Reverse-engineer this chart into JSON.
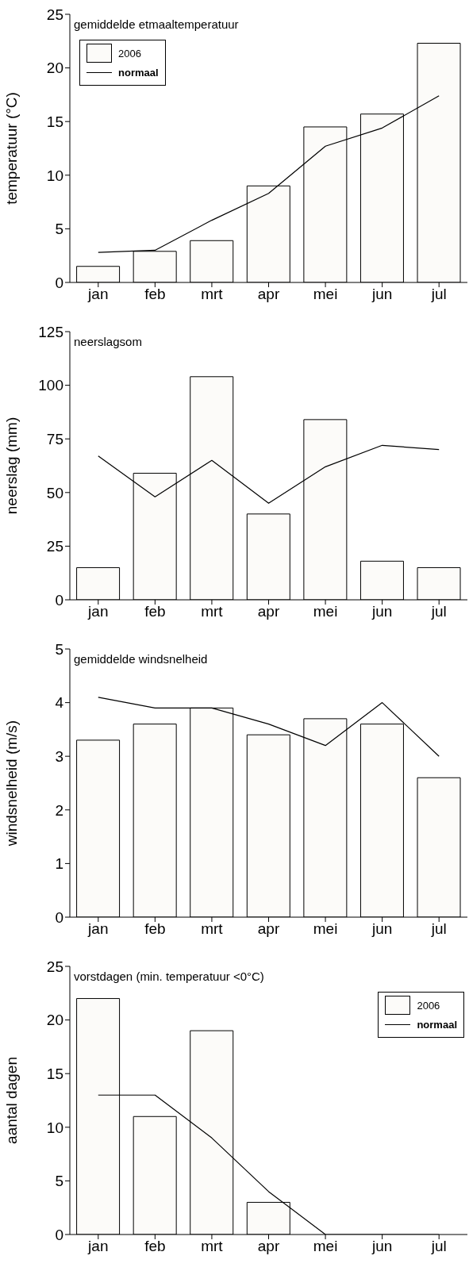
{
  "chart_data": [
    {
      "type": "bar",
      "title": "gemiddelde etmaaltemperatuur",
      "ylabel": "temperatuur (°C)",
      "categories": [
        "jan",
        "feb",
        "mrt",
        "apr",
        "mei",
        "jun",
        "jul"
      ],
      "series": [
        {
          "name": "2006",
          "color": "#fcfbf9",
          "values": [
            1.5,
            2.9,
            3.9,
            9.0,
            14.5,
            15.7,
            22.3
          ]
        },
        {
          "name": "normaal",
          "type": "line",
          "color": "#000000",
          "values": [
            2.8,
            3.0,
            5.8,
            8.3,
            12.7,
            14.4,
            17.4
          ]
        }
      ],
      "ylim": [
        0,
        25
      ],
      "yticks": [
        0,
        5,
        10,
        15,
        20,
        25
      ],
      "legend": "top left",
      "marker": "none"
    },
    {
      "type": "bar",
      "title": "neerslagsom",
      "ylabel": "neerslag (mm)",
      "categories": [
        "jan",
        "feb",
        "mrt",
        "apr",
        "mei",
        "jun",
        "jul"
      ],
      "series": [
        {
          "color": "#fcfbf9",
          "values": [
            15,
            59,
            104,
            40,
            84,
            18,
            15
          ]
        },
        {
          "type": "line",
          "color": "#000000",
          "values": [
            67,
            48,
            65,
            45,
            62,
            72,
            70
          ]
        }
      ],
      "ylim": [
        0,
        125
      ],
      "yticks": [
        0,
        25,
        50,
        75,
        100,
        125
      ],
      "marker": "none"
    },
    {
      "type": "bar",
      "title": "gemiddelde windsnelheid",
      "ylabel": "windsnelheid (m/s)",
      "categories": [
        "jan",
        "feb",
        "mrt",
        "apr",
        "mei",
        "jun",
        "jul"
      ],
      "series": [
        {
          "color": "#fcfbf9",
          "values": [
            3.3,
            3.6,
            3.9,
            3.4,
            3.7,
            3.6,
            2.6
          ]
        },
        {
          "type": "line",
          "color": "#000000",
          "values": [
            4.1,
            3.9,
            3.9,
            3.6,
            3.2,
            4.0,
            3.0
          ]
        }
      ],
      "ylim": [
        0,
        5
      ],
      "yticks": [
        0,
        1,
        2,
        3,
        4,
        5
      ],
      "marker": "none"
    },
    {
      "type": "bar",
      "title": "vorstdagen (min. temperatuur <0°C)",
      "ylabel": "aantal dagen",
      "categories": [
        "jan",
        "feb",
        "mrt",
        "apr",
        "mei",
        "jun",
        "jul"
      ],
      "series": [
        {
          "name": "2006",
          "color": "#fcfbf9",
          "values": [
            22,
            11,
            19,
            3,
            0,
            0,
            0
          ]
        },
        {
          "name": "normaal",
          "type": "line",
          "color": "#000000",
          "values": [
            13,
            13,
            9,
            4,
            0,
            0,
            0
          ]
        }
      ],
      "ylim": [
        0,
        25
      ],
      "yticks": [
        0,
        5,
        10,
        15,
        20,
        25
      ],
      "legend": "top right",
      "marker": "none"
    }
  ]
}
